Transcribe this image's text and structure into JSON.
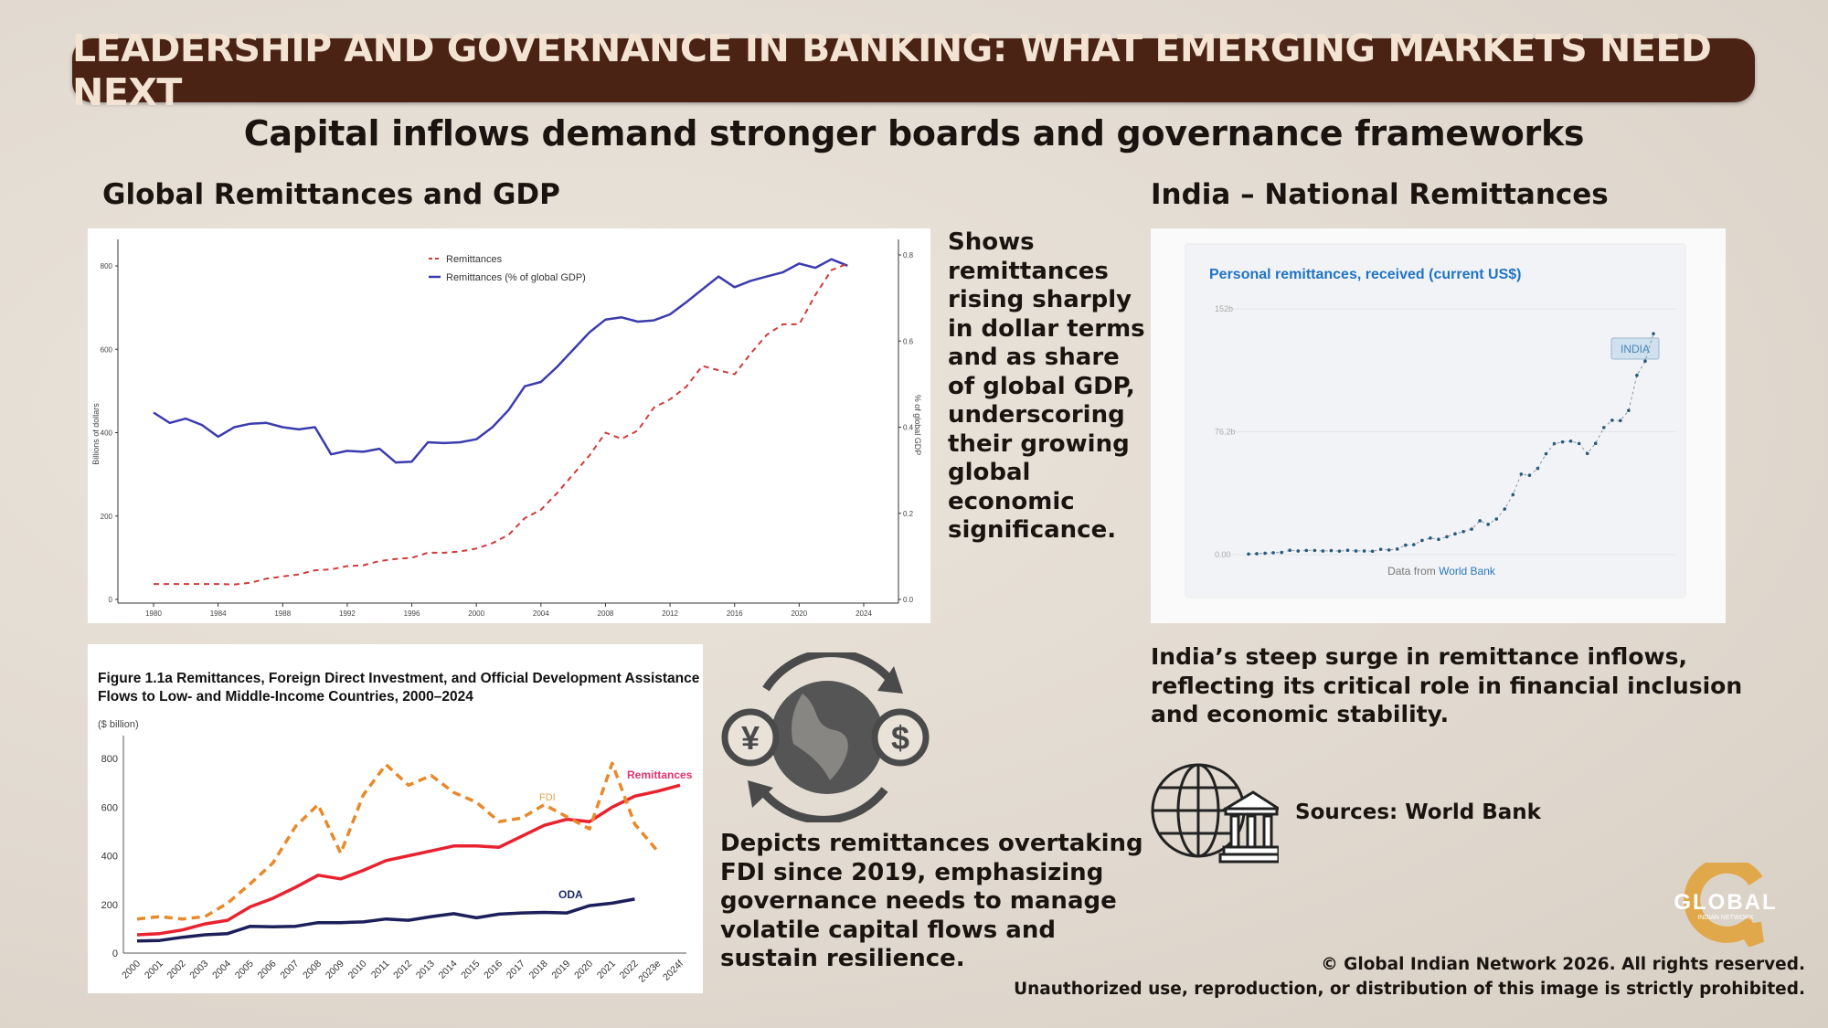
{
  "banner": {
    "title": "LEADERSHIP AND GOVERNANCE IN BANKING: WHAT EMERGING MARKETS NEED NEXT",
    "bg_color": "#4a2314"
  },
  "subtitle": "Capital inflows demand stronger boards and governance frameworks",
  "left_section": {
    "title": "Global Remittances and GDP"
  },
  "right_section": {
    "title": "India – National Remittances"
  },
  "texts": {
    "global_desc": [
      "Shows",
      "remittances",
      "rising sharply",
      "in dollar terms",
      "and as share",
      "of global GDP,",
      "underscoring",
      "their growing",
      "global",
      "economic",
      "significance."
    ],
    "india_desc": [
      "India’s steep surge in remittance inflows,",
      "reflecting its critical role in financial inclusion",
      "and economic stability."
    ],
    "flows_desc": [
      "Depicts remittances overtaking",
      "FDI since 2019, emphasizing",
      "governance needs to manage",
      "volatile capital flows and",
      "sustain resilience."
    ],
    "sources": "Sources: World Bank"
  },
  "icons": {
    "currency_globe": "globe-yen-dollar-exchange-icon",
    "globe_bank": "globe-bank-icon"
  },
  "logo": {
    "text": "GLOBAL",
    "subtext": "INDIAN NETWORK",
    "color": "#e0a84a"
  },
  "footer": {
    "copyright": "© Global Indian Network 2026. All rights reserved.",
    "notice": "Unauthorized use, reproduction, or distribution of this image is strictly prohibited."
  },
  "chart_data": [
    {
      "type": "line",
      "title": "",
      "ylabel": "Billions of dollars",
      "y2label": "% of global GDP",
      "ylim": [
        0,
        800
      ],
      "y2lim": [
        0,
        0.8
      ],
      "yticks": [
        "0",
        "200",
        "400",
        "600",
        "800"
      ],
      "y2ticks": [
        "0.0",
        "0.2",
        "0.4",
        "0.6",
        "0.8"
      ],
      "xticks": [
        "1980",
        "1984",
        "1988",
        "1992",
        "1996",
        "2000",
        "2004",
        "2008",
        "2012",
        "2016",
        "2020",
        "2024"
      ],
      "legend": "top-center",
      "x": [
        1980,
        1981,
        1982,
        1983,
        1984,
        1985,
        1986,
        1987,
        1988,
        1989,
        1990,
        1991,
        1992,
        1993,
        1994,
        1995,
        1996,
        1997,
        1998,
        1999,
        2000,
        2001,
        2002,
        2003,
        2004,
        2005,
        2006,
        2007,
        2008,
        2009,
        2010,
        2011,
        2012,
        2013,
        2014,
        2015,
        2016,
        2017,
        2018,
        2019,
        2020,
        2021,
        2022,
        2023
      ],
      "series": [
        {
          "name": "Remittances",
          "axis": "left",
          "color": "#d13a3a",
          "style": "dashed",
          "values": [
            37,
            37,
            37,
            37,
            37,
            36,
            40,
            50,
            55,
            60,
            70,
            72,
            80,
            82,
            92,
            97,
            100,
            112,
            112,
            115,
            122,
            135,
            155,
            195,
            215,
            255,
            300,
            345,
            400,
            385,
            405,
            460,
            480,
            510,
            560,
            550,
            540,
            590,
            635,
            660,
            660,
            730,
            790,
            805
          ]
        },
        {
          "name": "Remittances (% of global GDP)",
          "axis": "right",
          "color": "#3b3bb0",
          "style": "solid",
          "values": [
            0.434,
            0.41,
            0.42,
            0.405,
            0.378,
            0.4,
            0.408,
            0.41,
            0.4,
            0.395,
            0.4,
            0.337,
            0.345,
            0.343,
            0.35,
            0.318,
            0.32,
            0.365,
            0.363,
            0.365,
            0.372,
            0.4,
            0.44,
            0.495,
            0.505,
            0.54,
            0.58,
            0.62,
            0.65,
            0.655,
            0.645,
            0.648,
            0.662,
            0.69,
            0.72,
            0.75,
            0.725,
            0.74,
            0.75,
            0.76,
            0.78,
            0.77,
            0.79,
            0.775
          ]
        }
      ]
    },
    {
      "type": "line",
      "title": "Figure 1.1a Remittances, Foreign Direct Investment, and Official Development Assistance Flows to Low- and Middle-Income Countries, 2000–2024",
      "title_lines": [
        "Figure 1.1a Remittances, Foreign Direct Investment, and Official Development Assistance",
        "Flows to Low- and Middle-Income Countries, 2000–2024"
      ],
      "ylabel": "($ billion)",
      "ylim": [
        0,
        800
      ],
      "yticks": [
        "0",
        "200",
        "400",
        "600",
        "800"
      ],
      "categories": [
        "2000",
        "2001",
        "2002",
        "2003",
        "2004",
        "2005",
        "2006",
        "2007",
        "2008",
        "2009",
        "2010",
        "2011",
        "2012",
        "2013",
        "2014",
        "2015",
        "2016",
        "2017",
        "2018",
        "2019",
        "2020",
        "2021",
        "2022",
        "2023e",
        "2024f"
      ],
      "series": [
        {
          "name": "Remittances",
          "color": "#e8222e",
          "label_color": "#e0336a",
          "style": "solid",
          "values": [
            75,
            80,
            95,
            120,
            135,
            190,
            225,
            270,
            320,
            305,
            340,
            380,
            400,
            420,
            440,
            440,
            435,
            480,
            525,
            550,
            540,
            600,
            645,
            665,
            690
          ]
        },
        {
          "name": "FDI",
          "color": "#e8892b",
          "label_color": "#e8a04a",
          "style": "dashed",
          "values": [
            140,
            150,
            140,
            150,
            205,
            285,
            370,
            520,
            610,
            410,
            650,
            775,
            690,
            730,
            660,
            620,
            540,
            555,
            610,
            560,
            510,
            780,
            530,
            420,
            null
          ]
        },
        {
          "name": "ODA",
          "color": "#1c1f5a",
          "label_color": "#1c2a6a",
          "style": "solid",
          "values": [
            50,
            52,
            65,
            75,
            80,
            110,
            108,
            110,
            125,
            125,
            128,
            140,
            135,
            150,
            162,
            145,
            160,
            165,
            167,
            165,
            195,
            205,
            222,
            null,
            null
          ]
        }
      ]
    },
    {
      "type": "line",
      "title": "Personal remittances, received (current US$)",
      "source_prefix": "Data from ",
      "source_link": "World Bank",
      "ylim": [
        0,
        152.4
      ],
      "yticks": [
        "0.00",
        "76.2b",
        "152b"
      ],
      "ytick_values": [
        0,
        76.2,
        152.4
      ],
      "series_label": "INDIA",
      "color": "#2a5a7a",
      "x": [
        1975,
        1976,
        1977,
        1978,
        1979,
        1980,
        1981,
        1982,
        1983,
        1984,
        1985,
        1986,
        1987,
        1988,
        1989,
        1990,
        1991,
        1992,
        1993,
        1994,
        1995,
        1996,
        1997,
        1998,
        1999,
        2000,
        2001,
        2002,
        2003,
        2004,
        2005,
        2006,
        2007,
        2008,
        2009,
        2010,
        2011,
        2012,
        2013,
        2014,
        2015,
        2016,
        2017,
        2018,
        2019,
        2020,
        2021,
        2022,
        2023,
        2024
      ],
      "values": [
        0.4,
        0.6,
        0.9,
        1.2,
        1.4,
        2.7,
        2.3,
        2.6,
        2.6,
        2.3,
        2.5,
        2.2,
        2.7,
        2.3,
        2.3,
        2.1,
        3.3,
        2.9,
        3.5,
        5.9,
        6.2,
        8.8,
        10.3,
        9.5,
        11.1,
        12.9,
        14.3,
        15.8,
        21,
        18.8,
        22.1,
        28.3,
        37.2,
        49.9,
        49.2,
        53.5,
        62.5,
        68.8,
        69.9,
        70.4,
        68.9,
        62.7,
        69,
        78.8,
        83.3,
        83.1,
        89.4,
        111.2,
        120,
        137
      ]
    }
  ]
}
